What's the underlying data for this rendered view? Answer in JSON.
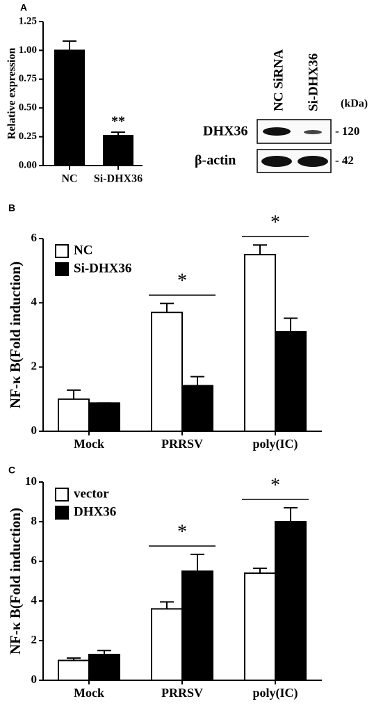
{
  "chart_data": [
    {
      "type": "bar",
      "panel": "A",
      "ylabel": "Relative expression",
      "categories": [
        "NC",
        "Si-DHX36"
      ],
      "values": [
        1.0,
        0.26
      ],
      "errors": [
        0.08,
        0.03
      ],
      "color": "#000000",
      "annotations": [
        null,
        "**"
      ],
      "ylim": [
        0,
        1.25
      ],
      "yticks": [
        {
          "value": 0,
          "label": "0.00"
        },
        {
          "value": 0.25,
          "label": "0.25"
        },
        {
          "value": 0.5,
          "label": "0.50"
        },
        {
          "value": 0.75,
          "label": "0.75"
        },
        {
          "value": 1.0,
          "label": "1.00"
        },
        {
          "value": 1.25,
          "label": "1.25"
        }
      ]
    },
    {
      "type": "grouped_bar",
      "panel": "B",
      "ylabel": "NF-κ B(Fold induction)",
      "categories": [
        "Mock",
        "PRRSV",
        "poly(IC)"
      ],
      "series": [
        {
          "name": "NC",
          "color": "#ffffff",
          "values": [
            1.0,
            3.7,
            5.5
          ],
          "errors": [
            0.28,
            0.28,
            0.3
          ]
        },
        {
          "name": "Si-DHX36",
          "color": "#000000",
          "values": [
            0.88,
            1.42,
            3.1
          ],
          "errors": [
            0,
            0.28,
            0.42
          ]
        }
      ],
      "annotations": [
        null,
        "*",
        "*"
      ],
      "legend": "upper left",
      "ylim": [
        0,
        6
      ],
      "yticks": [
        0,
        2,
        4,
        6
      ]
    },
    {
      "type": "grouped_bar",
      "panel": "C",
      "ylabel": "NF-κ B(Fold induction)",
      "categories": [
        "Mock",
        "PRRSV",
        "poly(IC)"
      ],
      "series": [
        {
          "name": "vector",
          "color": "#ffffff",
          "values": [
            1.0,
            3.6,
            5.4
          ],
          "errors": [
            0.12,
            0.35,
            0.25
          ]
        },
        {
          "name": "DHX36",
          "color": "#000000",
          "values": [
            1.3,
            5.5,
            8.0
          ],
          "errors": [
            0.2,
            0.85,
            0.7
          ]
        }
      ],
      "annotations": [
        null,
        "*",
        "*"
      ],
      "legend": "upper left",
      "ylim": [
        0,
        10
      ],
      "yticks": [
        0,
        2,
        4,
        6,
        8,
        10
      ]
    }
  ],
  "blot": {
    "lanes": [
      "NC SiRNA",
      "Si-DHX36"
    ],
    "unit": "(kDa)",
    "rows": [
      {
        "label": "DHX36",
        "size": "- 120"
      },
      {
        "label": "β-actin",
        "size": "- 42"
      }
    ]
  }
}
